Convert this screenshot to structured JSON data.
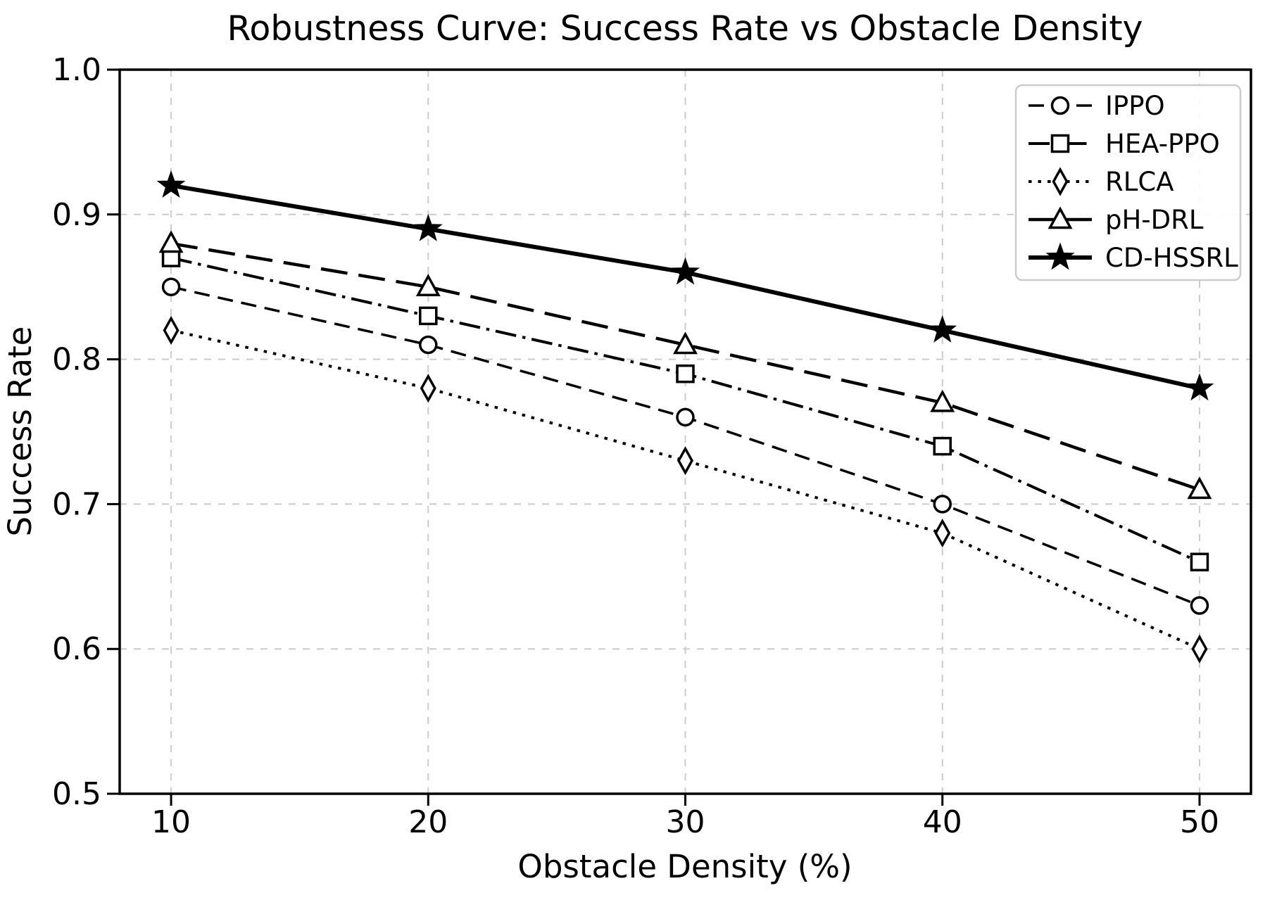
{
  "figure": {
    "background": "#ffffff"
  },
  "chart_data": {
    "type": "line",
    "title": "Robustness Curve: Success Rate vs Obstacle Density",
    "xlabel": "Obstacle Density (%)",
    "ylabel": "Success Rate",
    "x": [
      10,
      20,
      30,
      40,
      50
    ],
    "xtick_labels": [
      "10",
      "20",
      "30",
      "40",
      "50"
    ],
    "ytick_values": [
      0.5,
      0.6,
      0.7,
      0.8,
      0.9,
      1.0
    ],
    "ytick_labels": [
      "0.5",
      "0.6",
      "0.7",
      "0.8",
      "0.9",
      "1.0"
    ],
    "xlim": [
      8,
      52
    ],
    "ylim": [
      0.5,
      1.0
    ],
    "grid": true,
    "grid_color": "#cbcbcb",
    "axis_color": "#000000",
    "legend_position": "upper right",
    "series": [
      {
        "name": "IPPO",
        "values": [
          0.85,
          0.81,
          0.76,
          0.7,
          0.63
        ],
        "linestyle": "dashed",
        "marker": "circle",
        "linewidth": 3.5,
        "color": "#000000",
        "marker_filled": false
      },
      {
        "name": "HEA-PPO",
        "values": [
          0.87,
          0.83,
          0.79,
          0.74,
          0.66
        ],
        "linestyle": "dashdot",
        "marker": "square",
        "linewidth": 4,
        "color": "#000000",
        "marker_filled": false
      },
      {
        "name": "RLCA",
        "values": [
          0.82,
          0.78,
          0.73,
          0.68,
          0.6
        ],
        "linestyle": "dotted",
        "marker": "diamond",
        "linewidth": 4,
        "color": "#000000",
        "marker_filled": false
      },
      {
        "name": "pH-DRL",
        "values": [
          0.88,
          0.85,
          0.81,
          0.77,
          0.71
        ],
        "linestyle": "dashed_long",
        "marker": "triangle_up",
        "linewidth": 4.5,
        "color": "#000000",
        "marker_filled": false
      },
      {
        "name": "CD-HSSRL",
        "values": [
          0.92,
          0.89,
          0.86,
          0.82,
          0.78
        ],
        "linestyle": "solid",
        "marker": "star",
        "linewidth": 6,
        "color": "#000000",
        "marker_filled": true
      }
    ]
  }
}
